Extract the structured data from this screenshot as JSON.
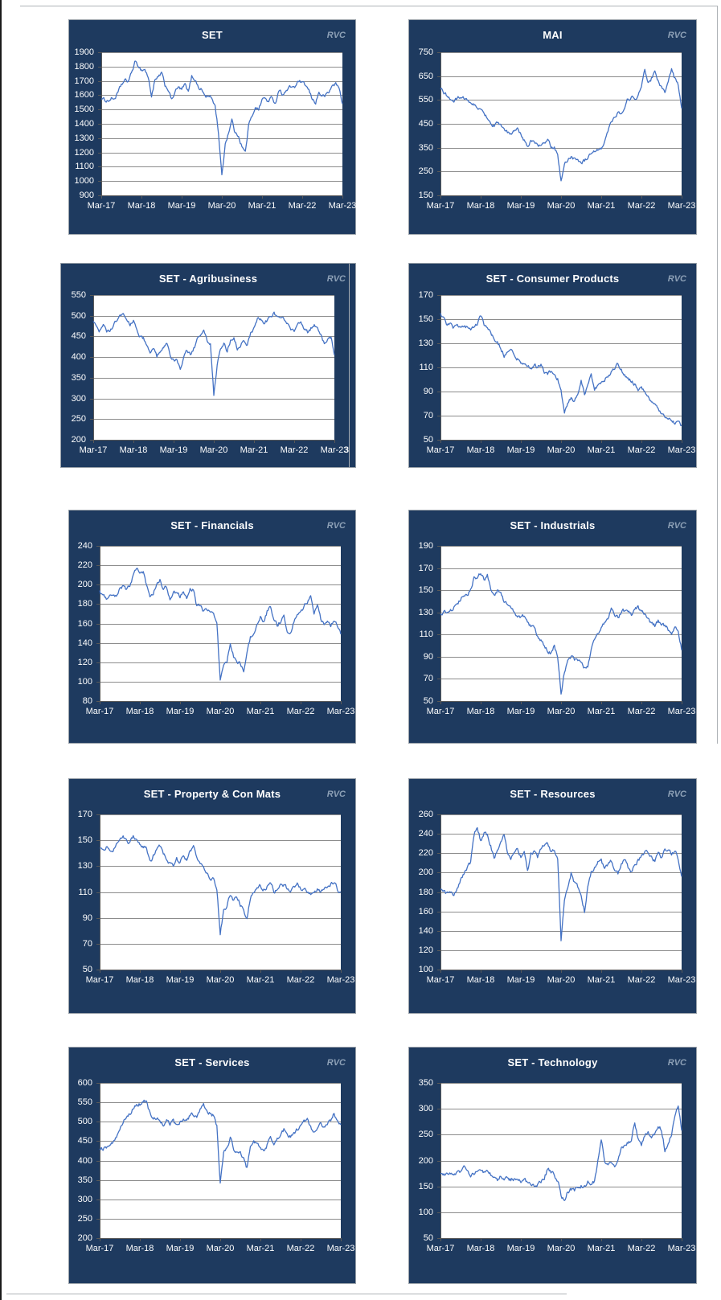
{
  "page": {
    "background": "#ffffff",
    "watermark": "RVC"
  },
  "colors": {
    "panel_navy": "#1e3a5f",
    "panel_border": "#98a0a8",
    "plot_bg": "#ffffff",
    "gridline": "#8c8c8c",
    "axis": "#595959",
    "series_line": "#4472c4",
    "label_text": "#ffffff",
    "watermark_text": "#8da0b6"
  },
  "x_tick_labels": [
    "Mar-17",
    "Mar-18",
    "Mar-19",
    "Mar-20",
    "Mar-21",
    "Mar-22",
    "Mar-23"
  ],
  "chart_data": [
    {
      "type": "line",
      "title": "SET",
      "watermark": "RVC",
      "xlabel": "",
      "ylabel": "",
      "grid": "horizontal",
      "legend": "none",
      "ylim": [
        900,
        1900
      ],
      "ytick_step": 100,
      "x_unit": "months_since_Mar-17",
      "monthly_values": [
        1575,
        1566,
        1562,
        1575,
        1577,
        1616,
        1673,
        1700,
        1697,
        1753,
        1828,
        1810,
        1776,
        1780,
        1726,
        1595,
        1700,
        1721,
        1756,
        1669,
        1641,
        1564,
        1624,
        1653,
        1638,
        1674,
        1620,
        1730,
        1712,
        1655,
        1637,
        1594,
        1590,
        1580,
        1524,
        1340,
        1030,
        1260,
        1340,
        1430,
        1330,
        1320,
        1240,
        1200,
        1390,
        1450,
        1520,
        1500,
        1570,
        1580,
        1550,
        1590,
        1540,
        1640,
        1610,
        1620,
        1650,
        1660,
        1660,
        1700,
        1680,
        1670,
        1630,
        1570,
        1550,
        1620,
        1590,
        1600,
        1620,
        1670,
        1680,
        1650,
        1540
      ]
    },
    {
      "type": "line",
      "title": "MAI",
      "watermark": "RVC",
      "xlabel": "",
      "ylabel": "",
      "grid": "horizontal",
      "legend": "none",
      "ylim": [
        150,
        750
      ],
      "ytick_step": 100,
      "x_unit": "months_since_Mar-17",
      "monthly_values": [
        595,
        580,
        565,
        555,
        545,
        555,
        565,
        560,
        545,
        540,
        530,
        520,
        505,
        490,
        480,
        450,
        440,
        455,
        450,
        420,
        415,
        405,
        420,
        425,
        410,
        380,
        355,
        380,
        375,
        360,
        355,
        370,
        380,
        355,
        350,
        320,
        210,
        280,
        300,
        310,
        305,
        300,
        290,
        295,
        310,
        320,
        330,
        340,
        350,
        380,
        420,
        460,
        480,
        500,
        490,
        510,
        555,
        560,
        555,
        570,
        600,
        680,
        620,
        640,
        670,
        630,
        600,
        580,
        620,
        680,
        640,
        610,
        515
      ]
    },
    {
      "type": "line",
      "title": "SET - Agribusiness",
      "watermark": "RVC",
      "xlabel": "",
      "ylabel": "",
      "grid": "horizontal",
      "legend": "none",
      "ylim": [
        200,
        550
      ],
      "ytick_step": 50,
      "x_unit": "months_since_Mar-17",
      "stray_label": "3",
      "monthly_values": [
        487,
        470,
        463,
        478,
        460,
        465,
        472,
        490,
        500,
        505,
        490,
        480,
        490,
        465,
        450,
        445,
        430,
        415,
        425,
        400,
        415,
        420,
        430,
        400,
        390,
        395,
        375,
        400,
        415,
        408,
        420,
        440,
        455,
        462,
        440,
        430,
        307,
        380,
        420,
        430,
        415,
        440,
        445,
        420,
        430,
        440,
        430,
        455,
        470,
        490,
        495,
        480,
        490,
        500,
        505,
        500,
        495,
        490,
        480,
        470,
        460,
        475,
        485,
        470,
        460,
        470,
        480,
        465,
        455,
        430,
        445,
        450,
        405
      ]
    },
    {
      "type": "line",
      "title": "SET - Consumer Products",
      "watermark": "RVC",
      "xlabel": "",
      "ylabel": "",
      "grid": "horizontal",
      "legend": "none",
      "ylim": [
        50,
        170
      ],
      "ytick_step": 20,
      "x_unit": "months_since_Mar-17",
      "monthly_values": [
        155,
        152,
        146,
        145,
        143,
        144,
        142,
        145,
        143,
        141,
        145,
        146,
        153,
        146,
        142,
        140,
        133,
        130,
        126,
        120,
        123,
        125,
        120,
        117,
        115,
        113,
        110,
        109,
        112,
        110,
        112,
        106,
        105,
        107,
        103,
        100,
        92,
        73,
        80,
        85,
        82,
        88,
        100,
        87,
        95,
        103,
        92,
        95,
        97,
        99,
        103,
        106,
        110,
        113,
        108,
        104,
        100,
        99,
        96,
        92,
        93,
        90,
        85,
        82,
        80,
        75,
        72,
        70,
        68,
        65,
        64,
        66,
        62
      ]
    },
    {
      "type": "line",
      "title": "SET - Financials",
      "watermark": "RVC",
      "xlabel": "",
      "ylabel": "",
      "grid": "horizontal",
      "legend": "none",
      "ylim": [
        80,
        240
      ],
      "ytick_step": 20,
      "x_unit": "months_since_Mar-17",
      "monthly_values": [
        194,
        190,
        187,
        190,
        188,
        190,
        196,
        199,
        195,
        200,
        210,
        218,
        210,
        212,
        200,
        188,
        192,
        200,
        205,
        196,
        198,
        186,
        192,
        190,
        188,
        195,
        186,
        196,
        194,
        178,
        180,
        172,
        174,
        170,
        172,
        160,
        100,
        118,
        122,
        140,
        125,
        122,
        118,
        112,
        128,
        145,
        152,
        158,
        168,
        162,
        172,
        178,
        165,
        158,
        162,
        168,
        152,
        150,
        162,
        168,
        172,
        178,
        182,
        190,
        172,
        180,
        165,
        158,
        162,
        158,
        162,
        158,
        149
      ]
    },
    {
      "type": "line",
      "title": "SET - Industrials",
      "watermark": "RVC",
      "xlabel": "",
      "ylabel": "",
      "grid": "horizontal",
      "legend": "none",
      "ylim": [
        50,
        190
      ],
      "ytick_step": 20,
      "x_unit": "months_since_Mar-17",
      "monthly_values": [
        129,
        131,
        130,
        132,
        134,
        138,
        142,
        147,
        144,
        150,
        160,
        163,
        165,
        160,
        163,
        150,
        145,
        150,
        148,
        140,
        138,
        133,
        130,
        127,
        125,
        127,
        120,
        118,
        115,
        108,
        105,
        100,
        95,
        93,
        100,
        90,
        57,
        75,
        85,
        90,
        87,
        88,
        85,
        80,
        82,
        95,
        105,
        110,
        115,
        120,
        125,
        135,
        128,
        125,
        130,
        132,
        130,
        128,
        132,
        135,
        130,
        128,
        125,
        120,
        118,
        122,
        120,
        118,
        115,
        112,
        118,
        112,
        96
      ]
    },
    {
      "type": "line",
      "title": "SET - Property & Con Mats",
      "watermark": "RVC",
      "xlabel": "",
      "ylabel": "",
      "grid": "horizontal",
      "legend": "none",
      "ylim": [
        50,
        170
      ],
      "ytick_step": 20,
      "x_unit": "months_since_Mar-17",
      "monthly_values": [
        144,
        142,
        145,
        143,
        140,
        147,
        150,
        152,
        150,
        148,
        153,
        150,
        146,
        145,
        143,
        133,
        138,
        142,
        146,
        140,
        136,
        132,
        130,
        135,
        133,
        137,
        135,
        143,
        145,
        138,
        132,
        128,
        125,
        121,
        120,
        112,
        79,
        95,
        100,
        108,
        104,
        106,
        100,
        95,
        89,
        105,
        110,
        112,
        115,
        112,
        114,
        118,
        110,
        112,
        115,
        116,
        113,
        112,
        115,
        116,
        113,
        112,
        110,
        108,
        110,
        112,
        111,
        113,
        115,
        116,
        118,
        112,
        110
      ]
    },
    {
      "type": "line",
      "title": "SET - Resources",
      "watermark": "RVC",
      "xlabel": "",
      "ylabel": "",
      "grid": "horizontal",
      "legend": "none",
      "ylim": [
        100,
        260
      ],
      "ytick_step": 20,
      "x_unit": "months_since_Mar-17",
      "monthly_values": [
        183,
        180,
        178,
        180,
        177,
        182,
        192,
        200,
        205,
        210,
        238,
        248,
        232,
        240,
        238,
        228,
        215,
        225,
        230,
        240,
        222,
        215,
        220,
        225,
        215,
        222,
        200,
        218,
        222,
        215,
        225,
        228,
        230,
        222,
        225,
        215,
        130,
        170,
        185,
        200,
        190,
        185,
        175,
        160,
        185,
        200,
        205,
        210,
        212,
        205,
        208,
        212,
        205,
        200,
        210,
        215,
        205,
        200,
        210,
        212,
        218,
        222,
        220,
        215,
        212,
        220,
        215,
        222,
        225,
        218,
        222,
        215,
        196
      ]
    },
    {
      "type": "line",
      "title": "SET - Services",
      "watermark": "RVC",
      "xlabel": "",
      "ylabel": "",
      "grid": "horizontal",
      "legend": "none",
      "ylim": [
        200,
        600
      ],
      "ytick_step": 50,
      "x_unit": "months_since_Mar-17",
      "monthly_values": [
        430,
        432,
        435,
        440,
        450,
        460,
        480,
        500,
        510,
        520,
        535,
        540,
        545,
        550,
        553,
        520,
        505,
        510,
        505,
        495,
        505,
        495,
        500,
        490,
        498,
        510,
        505,
        515,
        520,
        510,
        530,
        545,
        530,
        520,
        515,
        490,
        340,
        420,
        430,
        460,
        430,
        425,
        420,
        405,
        380,
        430,
        445,
        440,
        430,
        425,
        440,
        465,
        445,
        455,
        470,
        480,
        465,
        460,
        470,
        480,
        490,
        500,
        505,
        485,
        470,
        480,
        495,
        485,
        495,
        505,
        525,
        500,
        492
      ]
    },
    {
      "type": "line",
      "title": "SET - Technology",
      "watermark": "RVC",
      "xlabel": "",
      "ylabel": "",
      "grid": "horizontal",
      "legend": "none",
      "ylim": [
        50,
        350
      ],
      "ytick_step": 50,
      "x_unit": "months_since_Mar-17",
      "monthly_values": [
        175,
        173,
        176,
        174,
        172,
        178,
        180,
        185,
        178,
        172,
        175,
        178,
        180,
        175,
        178,
        172,
        168,
        160,
        170,
        165,
        168,
        162,
        165,
        168,
        162,
        165,
        155,
        152,
        150,
        152,
        160,
        168,
        182,
        178,
        172,
        162,
        135,
        120,
        140,
        145,
        143,
        148,
        150,
        152,
        158,
        155,
        160,
        200,
        242,
        200,
        190,
        195,
        185,
        200,
        225,
        230,
        235,
        240,
        275,
        240,
        230,
        250,
        255,
        245,
        250,
        270,
        260,
        220,
        235,
        250,
        285,
        308,
        258
      ]
    }
  ]
}
